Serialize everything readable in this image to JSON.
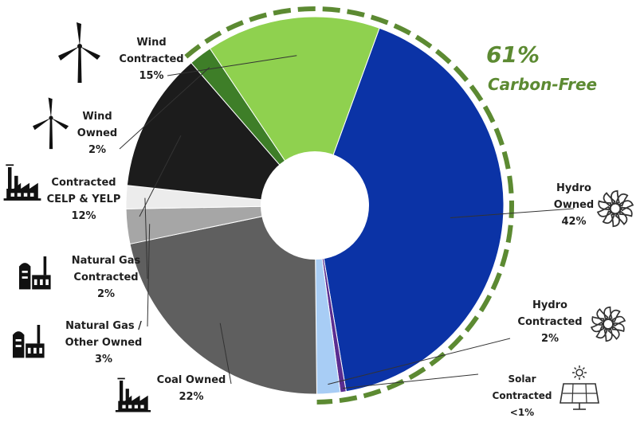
{
  "chart_data": {
    "type": "pie",
    "donut": true,
    "categories": [
      "Hydro Owned",
      "Solar Contracted",
      "Hydro Contracted",
      "Coal Owned",
      "Natural Gas / Other Owned",
      "Natural Gas Contracted",
      "Contracted CELP & YELP",
      "Wind Owned",
      "Wind Contracted"
    ],
    "values": [
      42,
      0.5,
      2,
      22,
      3,
      2,
      12,
      2,
      15
    ],
    "slice_labels": [
      {
        "lines": [
          "Hydro",
          "Owned",
          "42%"
        ],
        "icon": "hydro-turbine-icon"
      },
      {
        "lines": [
          "Solar",
          "Contracted",
          "<1%"
        ],
        "icon": "solar-panel-icon"
      },
      {
        "lines": [
          "Hydro",
          "Contracted",
          "2%"
        ],
        "icon": "hydro-turbine-icon"
      },
      {
        "lines": [
          "Coal Owned",
          "22%"
        ],
        "icon": "factory-icon"
      },
      {
        "lines": [
          "Natural Gas /",
          "Other Owned",
          "3%"
        ],
        "icon": "gas-plant-icon"
      },
      {
        "lines": [
          "Natural Gas",
          "Contracted",
          "2%"
        ],
        "icon": "gas-plant-icon"
      },
      {
        "lines": [
          "Contracted",
          "CELP & YELP",
          "12%"
        ],
        "icon": "factory-icon"
      },
      {
        "lines": [
          "Wind",
          "Owned",
          "2%"
        ],
        "icon": "wind-turbine-icon"
      },
      {
        "lines": [
          "Wind",
          "Contracted",
          "15%"
        ],
        "icon": "wind-turbine-icon"
      }
    ],
    "colors": [
      "#0b33a6",
      "#5a2d91",
      "#a8cdf5",
      "#5f5f5f",
      "#a6a6a6",
      "#ececec",
      "#1c1c1c",
      "#3e7e28",
      "#8fd14f"
    ],
    "annotation": {
      "value": "61%",
      "label": "Carbon-Free",
      "color": "#5c8a32"
    },
    "legend": "none"
  }
}
